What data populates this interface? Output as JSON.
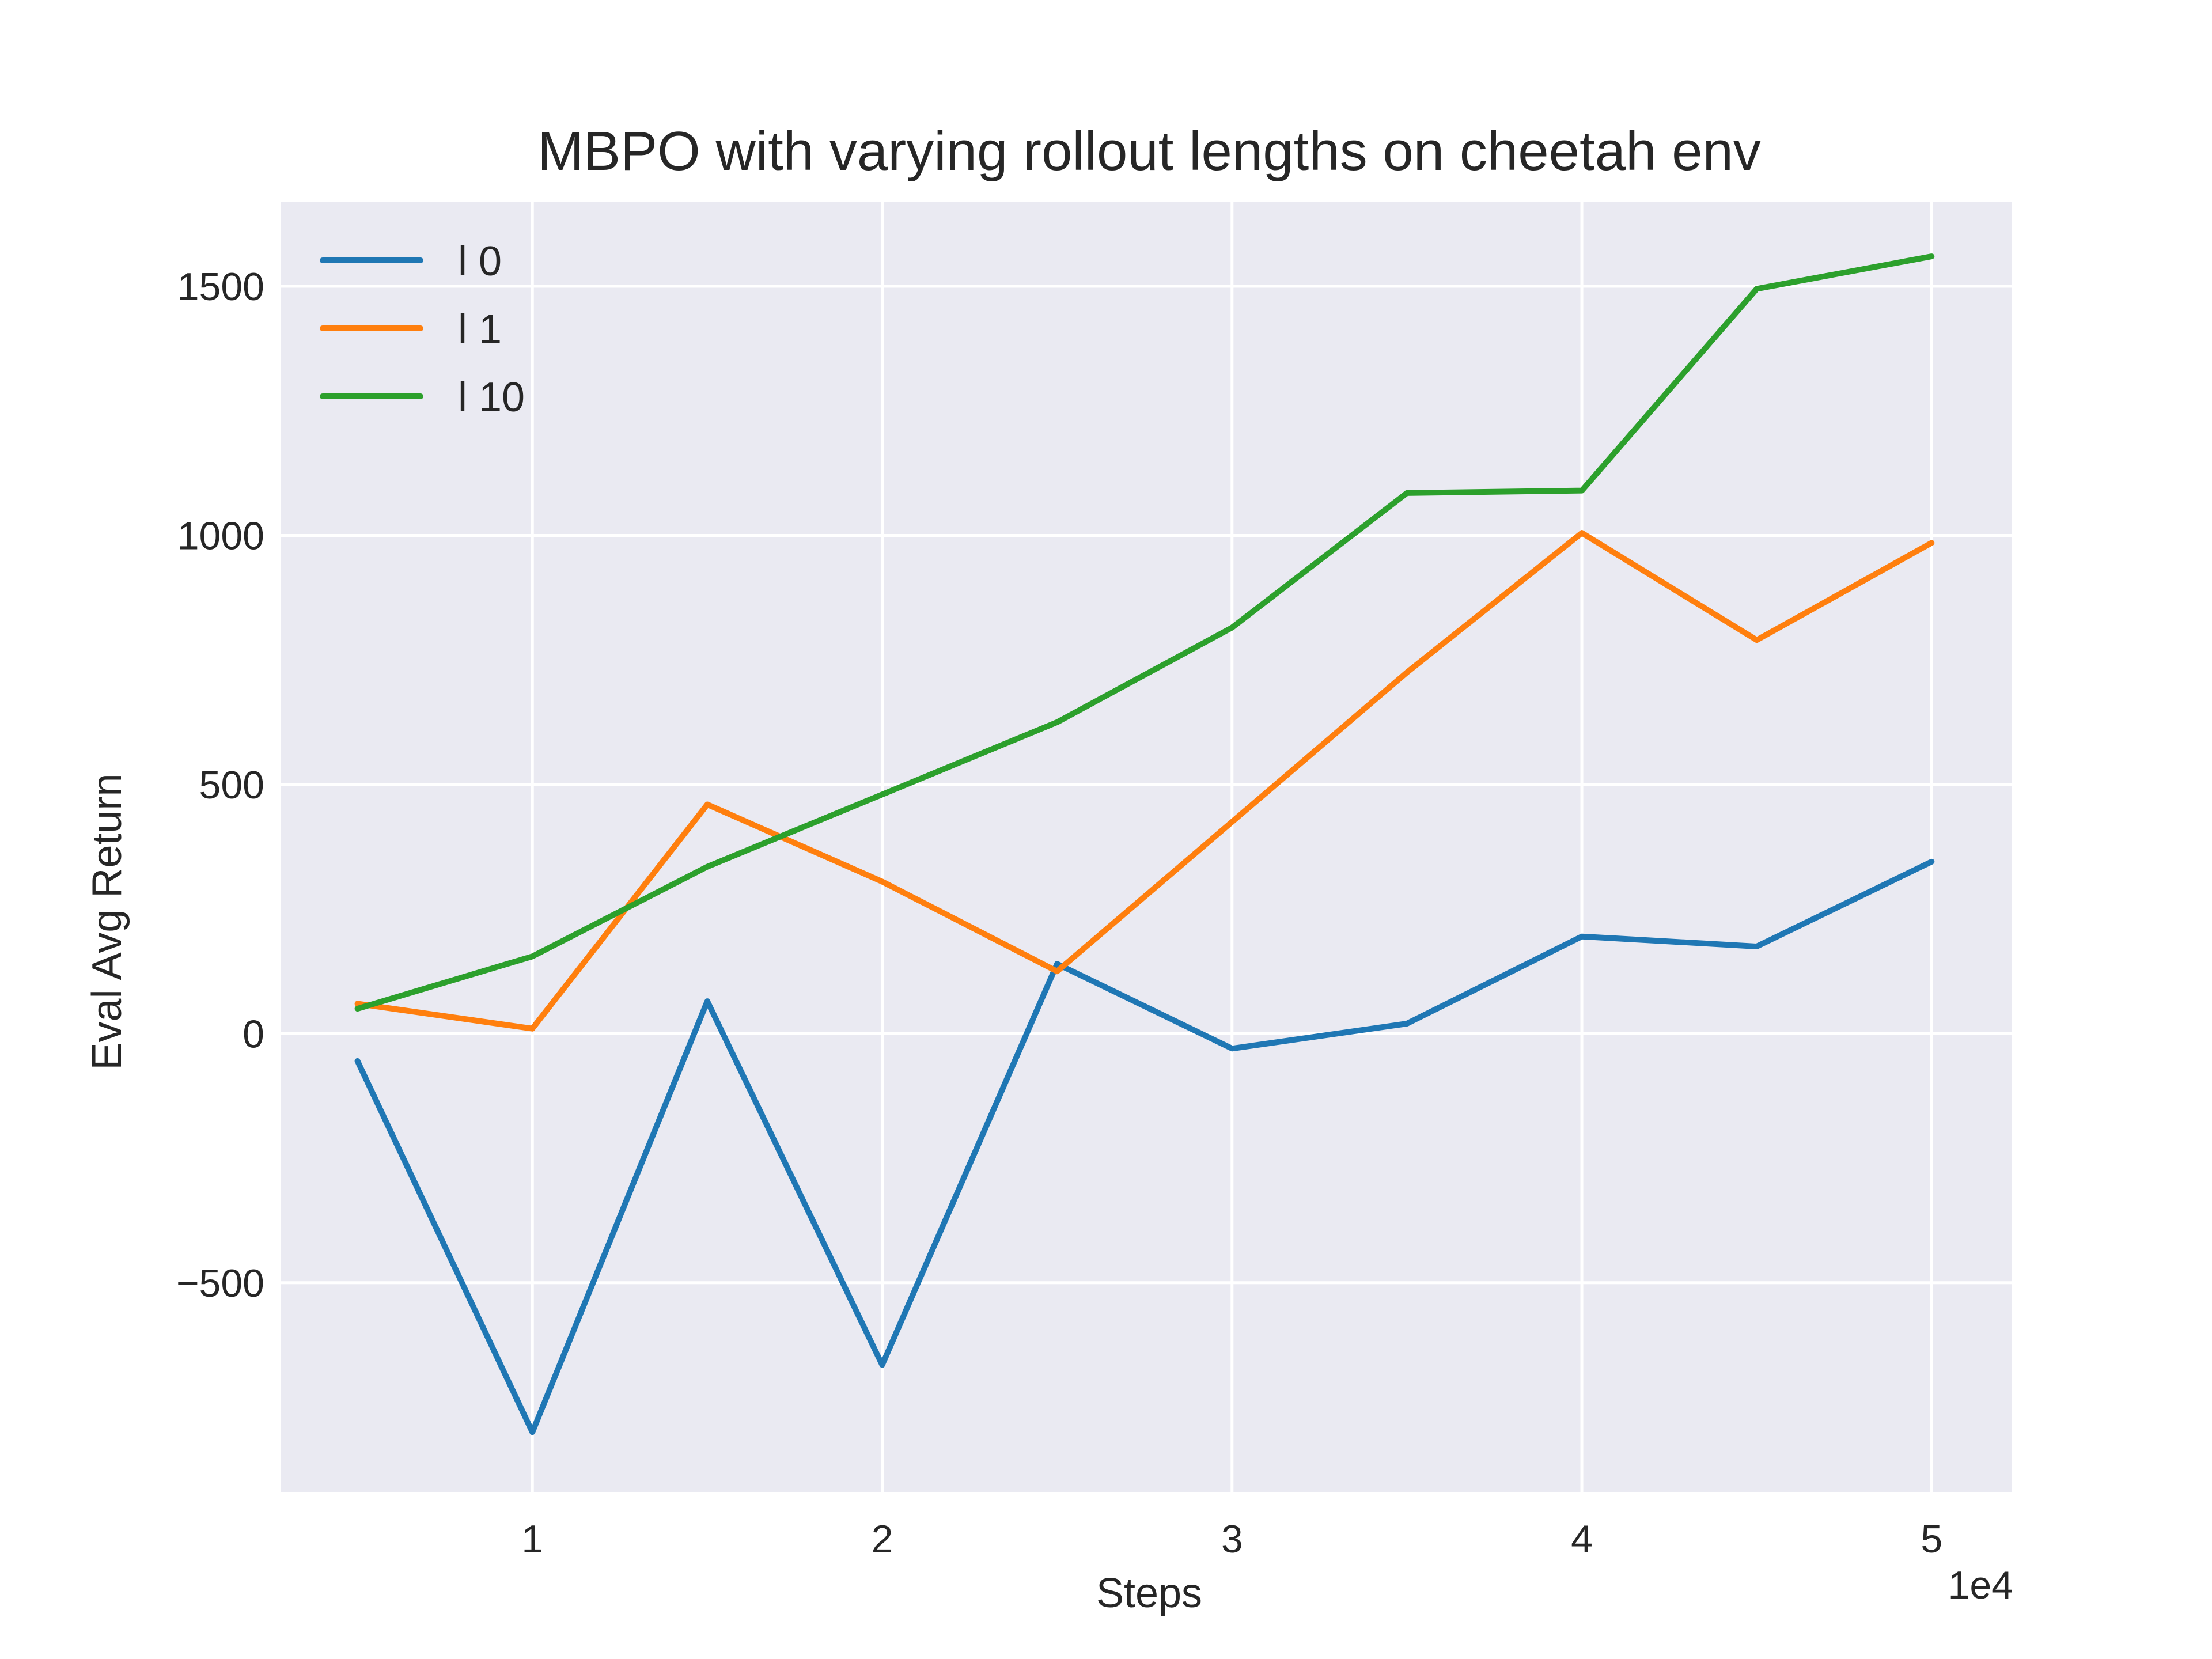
{
  "chart_data": {
    "type": "line",
    "title": "MBPO with varying rollout lengths on cheetah env",
    "xlabel": "Steps",
    "ylabel": "Eval Avg Return",
    "x_offset_text": "1e4",
    "x_tick_labels": [
      "1",
      "2",
      "3",
      "4",
      "5"
    ],
    "y_tick_labels": [
      "−500",
      "0",
      "500",
      "1000",
      "1500"
    ],
    "x_ticks": [
      1,
      2,
      3,
      4,
      5
    ],
    "y_ticks": [
      -500,
      0,
      500,
      1000,
      1500
    ],
    "xlim": [
      0.28,
      5.23
    ],
    "ylim": [
      -920,
      1670
    ],
    "grid": true,
    "legend_position": "top-left",
    "background_color": "#eaeaf2",
    "x": [
      0.5,
      1.0,
      1.5,
      2.0,
      2.5,
      3.0,
      3.5,
      4.0,
      4.5,
      5.0
    ],
    "series": [
      {
        "name": "l 0",
        "color": "#1f77b4",
        "values": [
          -55,
          -800,
          65,
          -665,
          140,
          -30,
          20,
          195,
          175,
          345
        ]
      },
      {
        "name": "l 1",
        "color": "#ff7f0e",
        "values": [
          60,
          10,
          460,
          305,
          125,
          425,
          725,
          1005,
          790,
          985
        ]
      },
      {
        "name": "l 10",
        "color": "#2ca02c",
        "values": [
          50,
          155,
          335,
          480,
          625,
          815,
          1085,
          1090,
          1495,
          1560
        ]
      }
    ]
  }
}
